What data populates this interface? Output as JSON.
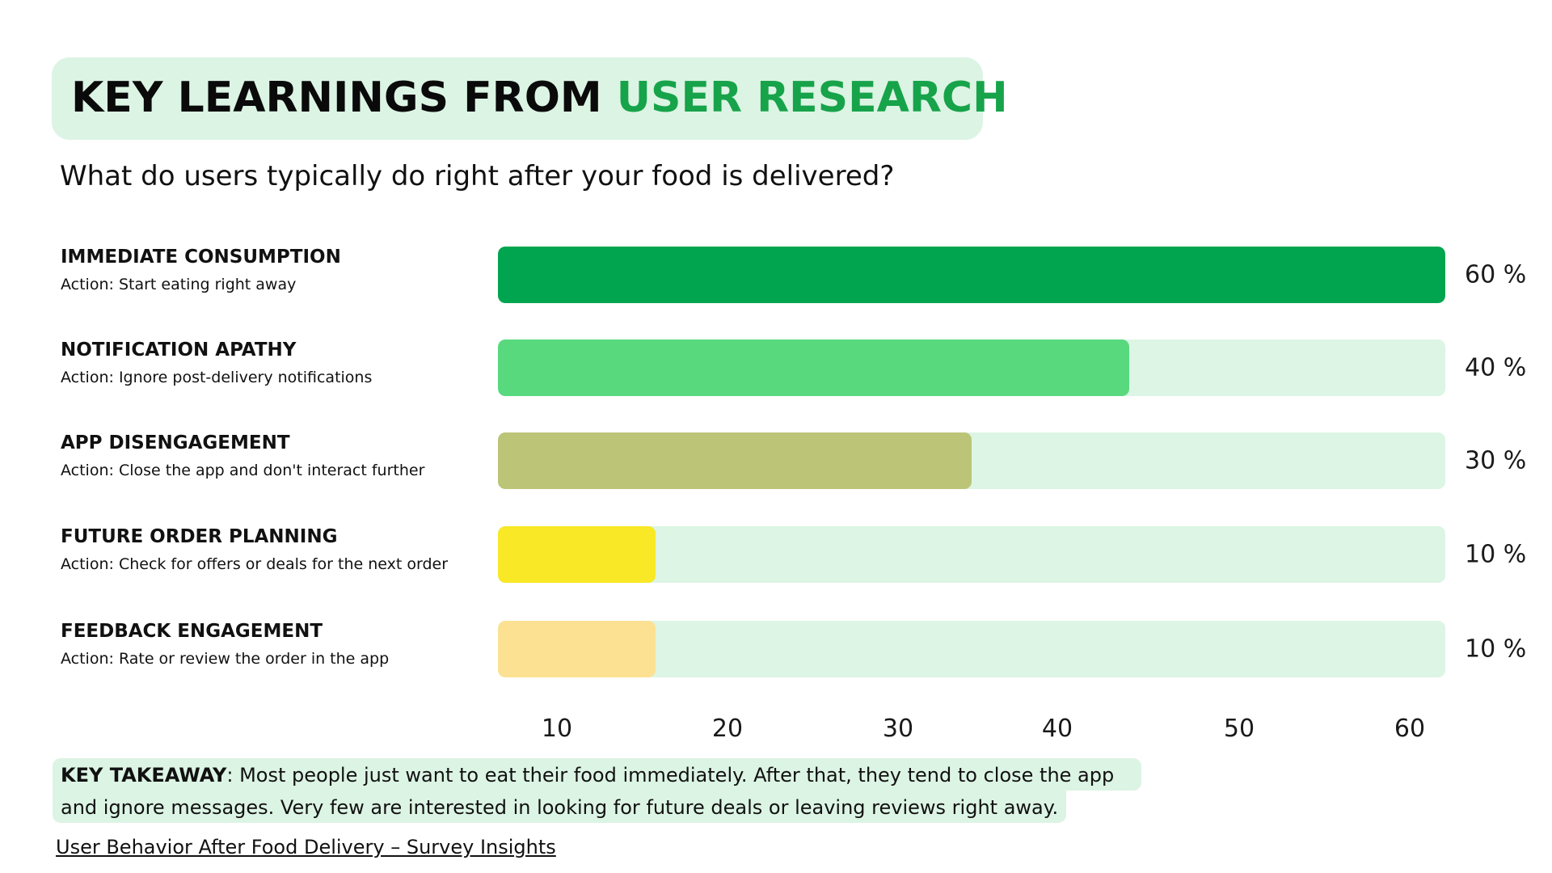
{
  "header": {
    "title_dark": "KEY LEARNINGS FROM ",
    "title_accent": "USER RESEARCH",
    "subtitle": "What do users typically do right after your food is delivered?"
  },
  "colors": {
    "accent": "#17a34a",
    "track": "#dcf5e4",
    "panel": "#dcf4e4"
  },
  "chart_data": {
    "type": "bar",
    "orientation": "horizontal",
    "title": "KEY LEARNINGS FROM USER RESEARCH",
    "subtitle": "What do users typically do right after your food is delivered?",
    "xlabel": "",
    "ylabel": "",
    "xlim": [
      0,
      60
    ],
    "grid": false,
    "legend": "none",
    "x_ticks": [
      10,
      20,
      30,
      40,
      50,
      60
    ],
    "categories": [
      "IMMEDIATE CONSUMPTION",
      "NOTIFICATION APATHY",
      "APP DISENGAGEMENT",
      "FUTURE ORDER PLANNING",
      "FEEDBACK ENGAGEMENT"
    ],
    "values": [
      60,
      40,
      30,
      10,
      10
    ],
    "rows": [
      {
        "name": "IMMEDIATE CONSUMPTION",
        "action": "Action: Start eating right away",
        "value": 60,
        "label": "60 %",
        "color": "#02a54f"
      },
      {
        "name": "NOTIFICATION APATHY",
        "action": "Action: Ignore post-delivery notifications",
        "value": 40,
        "label": "40 %",
        "color": "#58d97e"
      },
      {
        "name": "APP DISENGAGEMENT",
        "action": "Action: Close the app and don't interact further",
        "value": 30,
        "label": "30 %",
        "color": "#bcc478"
      },
      {
        "name": "FUTURE ORDER PLANNING",
        "action": "Action: Check for offers or deals for the next order",
        "value": 10,
        "label": "10 %",
        "color": "#f8e825"
      },
      {
        "name": "FEEDBACK ENGAGEMENT",
        "action": "Action: Rate or review the order in the app",
        "value": 10,
        "label": "10 %",
        "color": "#fde193"
      }
    ]
  },
  "takeaway": {
    "label": "KEY TAKEAWAY",
    "line1_rest": ": Most people just want to eat their food immediately. After that, they tend to close the app",
    "line2": "and ignore messages. Very few are interested in looking for future deals or leaving reviews right away."
  },
  "footer": {
    "link_text": "User Behavior After Food Delivery – Survey Insights"
  }
}
